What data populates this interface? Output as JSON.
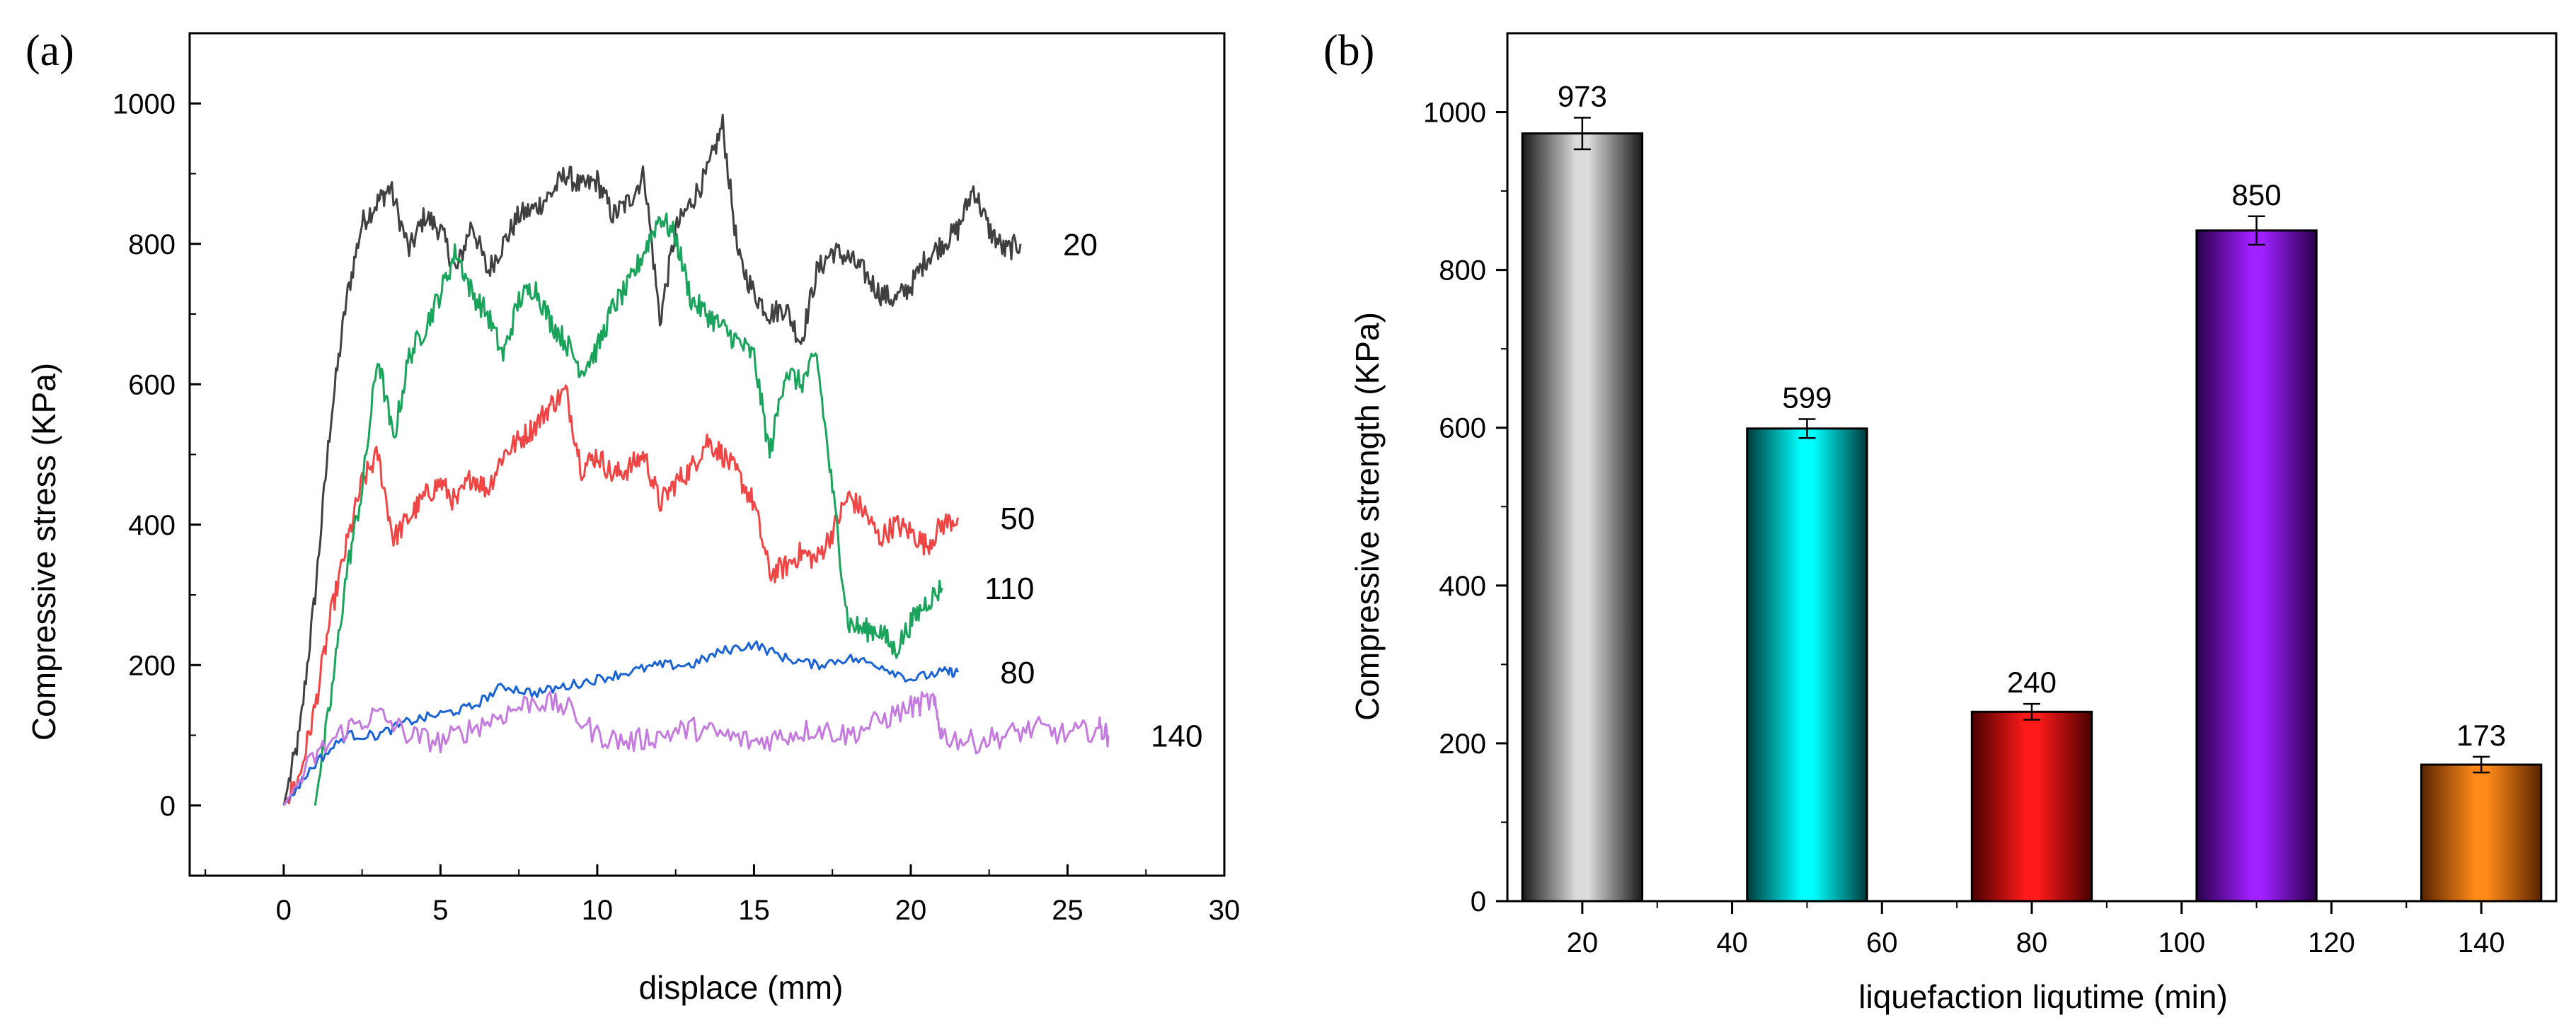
{
  "panels": {
    "a": "(a)",
    "b": "(b)"
  },
  "chart_data": [
    {
      "type": "line",
      "xlabel": "displace (mm)",
      "ylabel": "Compressive stress (KPa)",
      "xlim": [
        -3,
        30
      ],
      "ylim": [
        -100,
        1100
      ],
      "xticks": [
        0,
        5,
        10,
        15,
        20,
        25,
        30
      ],
      "xtick_labels": [
        "0",
        "5",
        "10",
        "15",
        "20",
        "25",
        "30"
      ],
      "yticks": [
        0,
        200,
        400,
        600,
        800,
        1000
      ],
      "ytick_labels": [
        "0",
        "200",
        "400",
        "600",
        "800",
        "1000"
      ],
      "series": [
        {
          "name": "20",
          "color": "#404040",
          "x": [
            0,
            0.5,
            1,
            1.5,
            2,
            2.5,
            3,
            3.4,
            4,
            4.5,
            5,
            5.5,
            6,
            6.5,
            7,
            7.5,
            8,
            8.5,
            9,
            9.5,
            10,
            10.5,
            11,
            11.5,
            12,
            12.5,
            13,
            13.5,
            14,
            14.5,
            15,
            15.5,
            16,
            16.5,
            17,
            17.5,
            18,
            18.5,
            19,
            19.5,
            20,
            20.5,
            21,
            21.5,
            22,
            22.5,
            23,
            23.5
          ],
          "y": [
            0,
            100,
            300,
            550,
            720,
            830,
            860,
            880,
            790,
            840,
            820,
            760,
            830,
            760,
            800,
            840,
            850,
            870,
            900,
            880,
            890,
            840,
            860,
            900,
            690,
            820,
            860,
            900,
            970,
            780,
            730,
            700,
            710,
            660,
            760,
            790,
            780,
            760,
            730,
            720,
            740,
            780,
            800,
            820,
            880,
            820,
            790,
            800
          ]
        },
        {
          "name": "50",
          "color": "#f04545",
          "x": [
            0,
            0.5,
            1,
            1.5,
            2,
            2.5,
            3,
            3.5,
            4,
            4.5,
            5,
            5.5,
            6,
            6.5,
            7,
            7.5,
            8,
            8.5,
            9,
            9.5,
            10,
            10.5,
            11,
            11.5,
            12,
            12.5,
            13,
            13.5,
            14,
            14.5,
            15,
            15.5,
            16,
            16.5,
            17,
            17.5,
            18,
            18.5,
            19,
            19.5,
            20,
            20.5,
            21,
            21.5
          ],
          "y": [
            0,
            40,
            140,
            270,
            370,
            460,
            500,
            380,
            410,
            440,
            460,
            430,
            470,
            450,
            500,
            520,
            540,
            570,
            590,
            480,
            500,
            470,
            480,
            500,
            430,
            460,
            480,
            520,
            500,
            470,
            430,
            330,
            340,
            360,
            350,
            390,
            440,
            420,
            380,
            400,
            390,
            370,
            400,
            410
          ]
        },
        {
          "name": "110",
          "color": "#1aa35a",
          "x": [
            1,
            1.5,
            2,
            2.5,
            3,
            3.5,
            4,
            4.5,
            5,
            5.5,
            6,
            6.5,
            7,
            7.5,
            8,
            8.5,
            9,
            9.5,
            10,
            10.5,
            11,
            11.5,
            12,
            12.5,
            13,
            13.5,
            14,
            14.5,
            15,
            15.5,
            16,
            16.5,
            17,
            17.5,
            18,
            18.5,
            19,
            19.5,
            20,
            20.5,
            21
          ],
          "y": [
            0,
            150,
            330,
            450,
            640,
            520,
            640,
            680,
            730,
            790,
            730,
            700,
            640,
            720,
            740,
            690,
            660,
            620,
            650,
            710,
            740,
            790,
            840,
            810,
            720,
            700,
            680,
            660,
            640,
            500,
            620,
            600,
            640,
            450,
            260,
            250,
            250,
            220,
            260,
            290,
            310
          ]
        },
        {
          "name": "80",
          "color": "#1a63d6",
          "x": [
            0,
            1,
            2,
            3,
            4,
            5,
            6,
            7,
            8,
            9,
            10,
            11,
            12,
            13,
            14,
            15,
            16,
            17,
            18,
            19,
            20,
            21,
            21.5
          ],
          "y": [
            0,
            60,
            100,
            100,
            120,
            130,
            140,
            170,
            160,
            170,
            180,
            190,
            200,
            200,
            220,
            230,
            210,
            200,
            210,
            200,
            180,
            190,
            190
          ]
        },
        {
          "name": "140",
          "color": "#c57ae0",
          "x": [
            0,
            1,
            2,
            3,
            4,
            5,
            6,
            7,
            8,
            9,
            10,
            11,
            12,
            13,
            14,
            15,
            16,
            17,
            18,
            19,
            20,
            20.7,
            21,
            22,
            23,
            24,
            25,
            26,
            26.3
          ],
          "y": [
            0,
            70,
            110,
            130,
            100,
            90,
            110,
            130,
            150,
            140,
            100,
            90,
            100,
            110,
            100,
            90,
            100,
            110,
            100,
            120,
            140,
            150,
            100,
            90,
            100,
            110,
            100,
            110,
            100
          ]
        }
      ]
    },
    {
      "type": "bar",
      "xlabel": "liquefaction  liqutime (min)",
      "ylabel": "Compressive strength (KPa)",
      "xlim": [
        10,
        150
      ],
      "ylim": [
        0,
        1100
      ],
      "xticks": [
        20,
        40,
        60,
        80,
        100,
        120,
        140
      ],
      "xtick_labels": [
        "20",
        "40",
        "60",
        "80",
        "100",
        "120",
        "140"
      ],
      "yticks": [
        0,
        200,
        400,
        600,
        800,
        1000
      ],
      "ytick_labels": [
        "0",
        "200",
        "400",
        "600",
        "800",
        "1000"
      ],
      "bars": [
        {
          "center": 20,
          "width": 16,
          "value": 973,
          "error": 20,
          "label": "973",
          "color": "#888888"
        },
        {
          "center": 50,
          "width": 16,
          "value": 599,
          "error": 12,
          "label": "599",
          "color": "#00dede"
        },
        {
          "center": 80,
          "width": 16,
          "value": 240,
          "error": 10,
          "label": "240",
          "color": "#e01010"
        },
        {
          "center": 110,
          "width": 16,
          "value": 850,
          "error": 18,
          "label": "850",
          "color": "#8a10e0"
        },
        {
          "center": 140,
          "width": 16,
          "value": 173,
          "error": 10,
          "label": "173",
          "color": "#ff8010"
        }
      ]
    }
  ]
}
